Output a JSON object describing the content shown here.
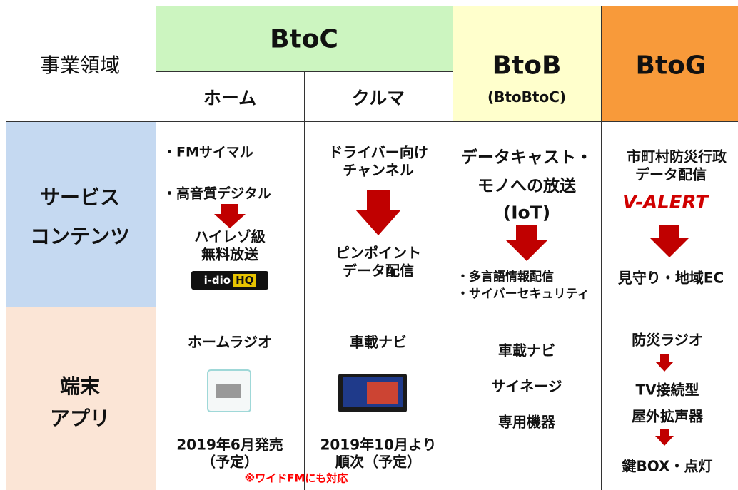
{
  "header": {
    "corner": "事業領域",
    "btoc": "BtoC",
    "home": "ホーム",
    "car": "クルマ",
    "btob": "BtoB",
    "btob_sub": "(BtoBtoC)",
    "btog": "BtoG"
  },
  "service": {
    "label": [
      "サービス",
      "コンテンツ"
    ],
    "home": {
      "items": [
        "・FMサイマル",
        "・高音質デジタル"
      ],
      "result": [
        "ハイレゾ級",
        "無料放送"
      ],
      "logo": [
        "i-dio",
        "HQ"
      ]
    },
    "car": {
      "items": [
        "ドライバー向け",
        "チャンネル"
      ],
      "result": [
        "ピンポイント",
        "データ配信"
      ]
    },
    "btob": {
      "items": [
        "データキャスト・",
        "モノへの放送",
        "(IoT)"
      ],
      "result": [
        "・多言語情報配信",
        "・サイバーセキュリティ"
      ]
    },
    "btog": {
      "items": [
        "市町村防災行政",
        "データ配信"
      ],
      "logo": "V-ALERT",
      "result": "見守り・地域EC"
    }
  },
  "device": {
    "label": [
      "端末",
      "アプリ"
    ],
    "home": {
      "title": "ホームラジオ",
      "release": [
        "2019年6月発売",
        "（予定）"
      ]
    },
    "car": {
      "title": "車載ナビ",
      "release": [
        "2019年10月より",
        "順次（予定）"
      ]
    },
    "note": "※ワイドFMにも対応",
    "btob": [
      "車載ナビ",
      "サイネージ",
      "専用機器"
    ],
    "btog": [
      "防災ラジオ",
      "TV接続型",
      "屋外拡声器",
      "鍵BOX・点灯"
    ]
  }
}
